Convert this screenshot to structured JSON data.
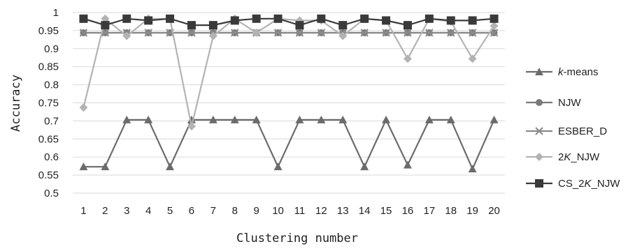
{
  "chart_data": {
    "type": "line",
    "xlabel": "Clustering number",
    "ylabel": "Accuracy",
    "x": [
      1,
      2,
      3,
      4,
      5,
      6,
      7,
      8,
      9,
      10,
      11,
      12,
      13,
      14,
      15,
      16,
      17,
      18,
      19,
      20
    ],
    "x_ticks": [
      "1",
      "2",
      "3",
      "4",
      "5",
      "6",
      "7",
      "8",
      "9",
      "10",
      "11",
      "12",
      "13",
      "14",
      "15",
      "16",
      "17",
      "18",
      "19",
      "20"
    ],
    "ylim": [
      0.5,
      1.0
    ],
    "y_ticks": [
      "0.5",
      "0.55",
      "0.6",
      "0.65",
      "0.7",
      "0.75",
      "0.8",
      "0.85",
      "0.9",
      "0.95",
      "1"
    ],
    "grid": true,
    "legend_position": "right",
    "series": [
      {
        "name_prefix": "k",
        "name_suffix": "-means",
        "color": "#6b6b6b",
        "marker": "triangle",
        "values": [
          0.573,
          0.573,
          0.703,
          0.703,
          0.573,
          0.703,
          0.703,
          0.703,
          0.703,
          0.573,
          0.703,
          0.703,
          0.703,
          0.573,
          0.703,
          0.578,
          0.703,
          0.703,
          0.567,
          0.703
        ]
      },
      {
        "name": "NJW",
        "color": "#7a7a7a",
        "marker": "circle",
        "values": [
          0.944,
          0.944,
          0.944,
          0.944,
          0.944,
          0.944,
          0.944,
          0.944,
          0.944,
          0.944,
          0.944,
          0.944,
          0.944,
          0.944,
          0.944,
          0.944,
          0.944,
          0.944,
          0.944,
          0.944
        ]
      },
      {
        "name": "ESBER_D",
        "color": "#8a8a8a",
        "marker": "x",
        "values": [
          0.944,
          0.944,
          0.944,
          0.944,
          0.944,
          0.944,
          0.944,
          0.944,
          0.944,
          0.944,
          0.944,
          0.944,
          0.944,
          0.944,
          0.944,
          0.944,
          0.944,
          0.944,
          0.944,
          0.944
        ]
      },
      {
        "name_prefix": "2",
        "name_italic": "K",
        "name_suffix": "_NJW",
        "color": "#b3b3b3",
        "marker": "diamond",
        "values": [
          0.737,
          0.983,
          0.935,
          0.983,
          0.983,
          0.685,
          0.935,
          0.983,
          0.944,
          0.983,
          0.978,
          0.978,
          0.935,
          0.983,
          0.978,
          0.872,
          0.983,
          0.975,
          0.872,
          0.963
        ]
      },
      {
        "name_prefix": "CS_2",
        "name_italic": "K",
        "name_suffix": "_NJW",
        "color": "#3a3a3a",
        "marker": "square",
        "values": [
          0.983,
          0.965,
          0.983,
          0.978,
          0.983,
          0.965,
          0.965,
          0.978,
          0.983,
          0.983,
          0.965,
          0.983,
          0.965,
          0.983,
          0.978,
          0.965,
          0.983,
          0.978,
          0.978,
          0.983
        ]
      }
    ]
  }
}
